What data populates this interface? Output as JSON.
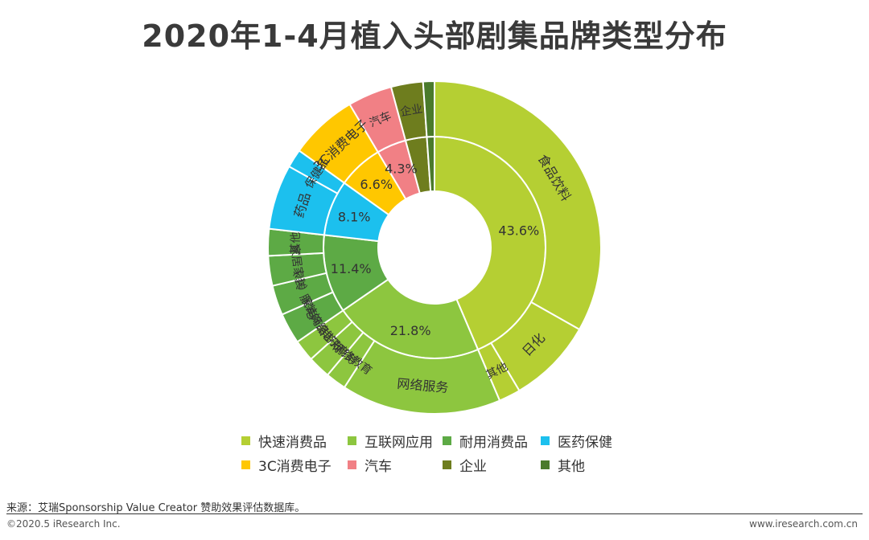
{
  "colors": {
    "food": "#b5cf33",
    "internet": "#8dc63f",
    "durable": "#5daa45",
    "health": "#1cc0ee",
    "electronics": "#ffc700",
    "auto": "#f18085",
    "enterprise": "#6e7d1e",
    "other": "#4a7a2b"
  },
  "chart_data": {
    "type": "pie",
    "subtype": "sunburst-donut",
    "title": "2020年1-4月植入头部剧集品牌类型分布",
    "inner_ring": [
      {
        "key": "food",
        "label": "快速消费品",
        "value": 43.6,
        "value_label": "43.6%"
      },
      {
        "key": "internet",
        "label": "互联网应用",
        "value": 21.8,
        "value_label": "21.8%"
      },
      {
        "key": "durable",
        "label": "耐用消费品",
        "value": 11.4,
        "value_label": "11.4%"
      },
      {
        "key": "health",
        "label": "医药保健",
        "value": 8.1,
        "value_label": "8.1%"
      },
      {
        "key": "electronics",
        "label": "3C消费电子",
        "value": 6.6,
        "value_label": "6.6%"
      },
      {
        "key": "auto",
        "label": "汽车",
        "value": 4.3,
        "value_label": "4.3%"
      },
      {
        "key": "enterprise",
        "label": "企业",
        "value": 3.1,
        "value_label": ""
      },
      {
        "key": "other",
        "label": "其他",
        "value": 1.1,
        "value_label": ""
      }
    ],
    "outer_ring": [
      {
        "parent": "food",
        "label": "食品饮料",
        "value": 33.2
      },
      {
        "parent": "food",
        "label": "日化",
        "value": 8.3
      },
      {
        "parent": "food",
        "label": "其他",
        "value": 2.1
      },
      {
        "parent": "internet",
        "label": "网络服务",
        "value": 15.5
      },
      {
        "parent": "internet",
        "label": "网络教育",
        "value": 2.0
      },
      {
        "parent": "internet",
        "label": "电子商务",
        "value": 2.2
      },
      {
        "parent": "internet",
        "label": "网络游戏",
        "value": 2.1
      },
      {
        "parent": "durable",
        "label": "服装饰品",
        "value": 3.0
      },
      {
        "parent": "durable",
        "label": "（小）家电",
        "value": 2.9
      },
      {
        "parent": "durable",
        "label": "家居家装",
        "value": 2.9
      },
      {
        "parent": "durable",
        "label": "其他",
        "value": 2.6
      },
      {
        "parent": "health",
        "label": "药品",
        "value": 6.3
      },
      {
        "parent": "health",
        "label": "保健品",
        "value": 1.8
      },
      {
        "parent": "electronics",
        "label": "3C消费电子",
        "value": 6.6
      },
      {
        "parent": "auto",
        "label": "汽车",
        "value": 4.3
      },
      {
        "parent": "enterprise",
        "label": "企业",
        "value": 3.1
      },
      {
        "parent": "other",
        "label": "",
        "value": 1.1
      }
    ]
  },
  "legend": [
    {
      "key": "food",
      "label": "快速消费品"
    },
    {
      "key": "internet",
      "label": "互联网应用"
    },
    {
      "key": "durable",
      "label": "耐用消费品"
    },
    {
      "key": "health",
      "label": "医药保健"
    },
    {
      "key": "electronics",
      "label": "3C消费电子"
    },
    {
      "key": "auto",
      "label": "汽车"
    },
    {
      "key": "enterprise",
      "label": "企业"
    },
    {
      "key": "other",
      "label": "其他"
    }
  ],
  "footer": {
    "source": "来源：艾瑞Sponsorship Value Creator 赞助效果评估数据库。",
    "copyright": "©2020.5 iResearch Inc.",
    "website": "www.iresearch.com.cn"
  }
}
